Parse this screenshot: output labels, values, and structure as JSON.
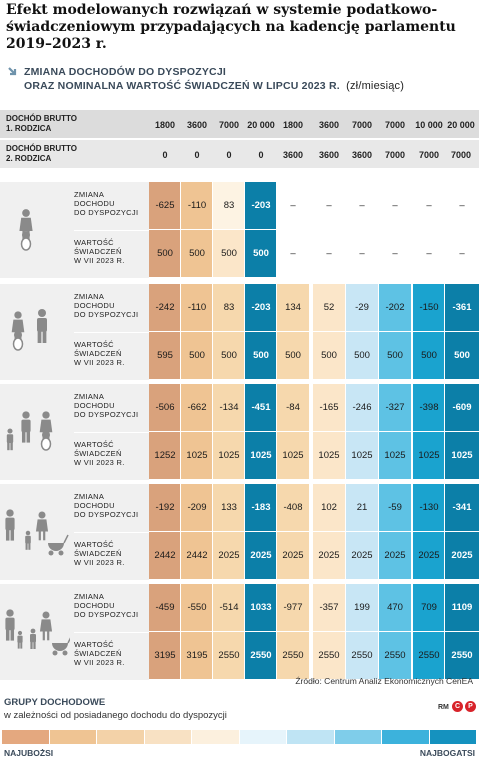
{
  "title": "Efekt modelowanych rozwiązań w systemie podatkowo-świadczeniowym przypadających na kadencję parlamentu 2019–2023 r.",
  "subtitle": {
    "line1": "ZMIANA DOCHODÓW DO DYSPOZYCJI",
    "line2": "ORAZ NOMINALNA WARTOŚĆ ŚWIADCZEŃ W LIPCU 2023 R.",
    "unit": "(zł/miesiąc)"
  },
  "chart_data": {
    "type": "table",
    "header_rows": [
      {
        "label": [
          "DOCHÓD BRUTTO",
          "1. RODZICA"
        ],
        "values": [
          "1800",
          "3600",
          "7000",
          "20 000",
          "1800",
          "3600",
          "7000",
          "7000",
          "10 000",
          "20 000"
        ]
      },
      {
        "label": [
          "DOCHÓD BRUTTO",
          "2. RODZICA"
        ],
        "values": [
          "0",
          "0",
          "0",
          "0",
          "3600",
          "3600",
          "3600",
          "7000",
          "7000",
          "7000"
        ]
      }
    ],
    "metric_labels": {
      "change": [
        "ZMIANA",
        "DOCHODU",
        "DO DYSPOZYCJI"
      ],
      "benefit": [
        "WARTOŚĆ",
        "ŚWIADCZEŃ",
        "W VII 2023 R."
      ]
    },
    "groups": [
      {
        "icon": "single-parent-one-child-icon",
        "change": [
          "-625",
          "-110",
          "83",
          "-203",
          "–",
          "–",
          "–",
          "–",
          "–",
          "–"
        ],
        "benefit": [
          "500",
          "500",
          "500",
          "500",
          "–",
          "–",
          "–",
          "–",
          "–",
          "–"
        ],
        "change_shade": [
          1,
          2,
          5,
          9,
          0,
          0,
          0,
          0,
          0,
          0
        ],
        "benefit_shade": [
          1,
          2,
          4,
          9,
          0,
          0,
          0,
          0,
          0,
          0
        ]
      },
      {
        "icon": "couple-one-child-icon",
        "change": [
          "-242",
          "-110",
          "83",
          "-203",
          "134",
          "52",
          "-29",
          "-202",
          "-150",
          "-361"
        ],
        "benefit": [
          "595",
          "500",
          "500",
          "500",
          "500",
          "500",
          "500",
          "500",
          "500",
          "500"
        ],
        "change_shade": [
          1,
          2,
          3,
          9,
          3,
          4,
          6,
          7,
          8,
          9
        ],
        "benefit_shade": [
          1,
          2,
          3,
          9,
          3,
          4,
          6,
          7,
          8,
          9
        ]
      },
      {
        "icon": "couple-two-children-icon",
        "change": [
          "-506",
          "-662",
          "-134",
          "-451",
          "-84",
          "-165",
          "-246",
          "-327",
          "-398",
          "-609"
        ],
        "benefit": [
          "1252",
          "1025",
          "1025",
          "1025",
          "1025",
          "1025",
          "1025",
          "1025",
          "1025",
          "1025"
        ],
        "change_shade": [
          1,
          2,
          3,
          9,
          3,
          4,
          6,
          7,
          8,
          9
        ],
        "benefit_shade": [
          1,
          2,
          3,
          9,
          3,
          4,
          6,
          7,
          8,
          9
        ]
      },
      {
        "icon": "couple-three-children-icon",
        "change": [
          "-192",
          "-209",
          "133",
          "-183",
          "-408",
          "102",
          "21",
          "-59",
          "-130",
          "-341"
        ],
        "benefit": [
          "2442",
          "2442",
          "2025",
          "2025",
          "2025",
          "2025",
          "2025",
          "2025",
          "2025",
          "2025"
        ],
        "change_shade": [
          1,
          2,
          3,
          9,
          3,
          4,
          6,
          7,
          8,
          9
        ],
        "benefit_shade": [
          1,
          2,
          3,
          9,
          3,
          4,
          6,
          7,
          8,
          9
        ]
      },
      {
        "icon": "couple-four-children-icon",
        "change": [
          "-459",
          "-550",
          "-514",
          "1033",
          "-977",
          "-357",
          "199",
          "470",
          "709",
          "1109"
        ],
        "benefit": [
          "3195",
          "3195",
          "2550",
          "2550",
          "2550",
          "2550",
          "2550",
          "2550",
          "2550",
          "2550"
        ],
        "change_shade": [
          1,
          2,
          3,
          9,
          3,
          4,
          6,
          7,
          8,
          9
        ],
        "benefit_shade": [
          1,
          2,
          3,
          9,
          3,
          4,
          6,
          7,
          8,
          9
        ]
      }
    ],
    "shade_colors": [
      "#ffffff",
      "#d9a27c",
      "#efc493",
      "#f6d8ad",
      "#fbe6c9",
      "#fdf3e3",
      "#c8e6f5",
      "#5ec2e4",
      "#1aa3cf",
      "#0c7fa8"
    ]
  },
  "source": "Źródło: Centrum Analiz Ekonomicznych CenEA",
  "legend": {
    "title": "GRUPY DOCHODOWE",
    "subtitle": "w zależności od posiadanego dochodu do dyspozycji",
    "low_label": "NAJUBOŻSI",
    "high_label": "NAJBOGATSI",
    "colors": [
      "#e4a87f",
      "#efc493",
      "#f3d2a8",
      "#f8e1c3",
      "#fcf0de",
      "#e6f4fb",
      "#bfe4f4",
      "#7fcdea",
      "#3cb2dc",
      "#1592bf"
    ]
  },
  "credits": {
    "rm": "RM",
    "c": "C",
    "p": "P"
  }
}
